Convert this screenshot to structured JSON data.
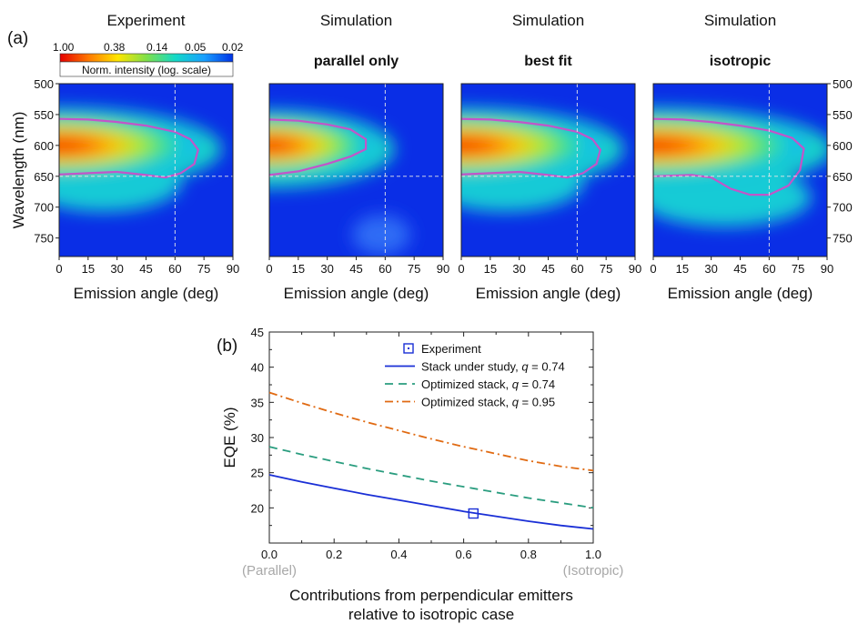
{
  "figure": {
    "panel_a_label": "(a)",
    "panel_b_label": "(b)"
  },
  "colorbar": {
    "ticks": [
      "1.00",
      "0.38",
      "0.14",
      "0.05",
      "0.02"
    ],
    "label": "Norm. intensity (log. scale)",
    "colors": [
      "#e60000",
      "#ff7a00",
      "#ffe600",
      "#7fe04a",
      "#14d9c7",
      "#1aa0ff",
      "#0033e6"
    ]
  },
  "chart_data": [
    {
      "type": "heatmap",
      "title": "Experiment",
      "subtitle": "",
      "xlabel": "Emission angle (deg)",
      "ylabel": "Wavelength (nm)",
      "xlim": [
        0,
        90
      ],
      "ylim": [
        500,
        780
      ],
      "xticks": [
        "0",
        "15",
        "30",
        "45",
        "60",
        "75",
        "90"
      ],
      "yticks": [
        "500",
        "550",
        "600",
        "650",
        "700",
        "750"
      ],
      "guide_lines": {
        "x": 60,
        "y": 650
      },
      "contour": [
        [
          0,
          557
        ],
        [
          15,
          558
        ],
        [
          30,
          562
        ],
        [
          45,
          568
        ],
        [
          60,
          578
        ],
        [
          68,
          590
        ],
        [
          72,
          607
        ],
        [
          70,
          630
        ],
        [
          63,
          645
        ],
        [
          55,
          652
        ],
        [
          45,
          648
        ],
        [
          30,
          643
        ],
        [
          15,
          645
        ],
        [
          0,
          647
        ]
      ],
      "peak": {
        "x": 0,
        "y": 600,
        "wavelength_halfwidth": 50,
        "angle_extent": 78,
        "secondary_lobe": 38
      }
    },
    {
      "type": "heatmap",
      "title": "Simulation",
      "subtitle": "parallel only",
      "xlabel": "Emission angle (deg)",
      "ylabel": "",
      "xlim": [
        0,
        90
      ],
      "ylim": [
        500,
        780
      ],
      "xticks": [
        "0",
        "15",
        "30",
        "45",
        "60",
        "75",
        "90"
      ],
      "yticks": [],
      "guide_lines": {
        "x": 60,
        "y": 650
      },
      "contour": [
        [
          0,
          558
        ],
        [
          15,
          560
        ],
        [
          30,
          566
        ],
        [
          42,
          574
        ],
        [
          50,
          590
        ],
        [
          50,
          606
        ],
        [
          42,
          618
        ],
        [
          30,
          630
        ],
        [
          15,
          642
        ],
        [
          0,
          648
        ]
      ],
      "peak": {
        "x": 0,
        "y": 600,
        "wavelength_halfwidth": 47,
        "angle_extent": 60,
        "secondary_lobe": 0
      }
    },
    {
      "type": "heatmap",
      "title": "Simulation",
      "subtitle": "best fit",
      "xlabel": "Emission angle (deg)",
      "ylabel": "",
      "xlim": [
        0,
        90
      ],
      "ylim": [
        500,
        780
      ],
      "xticks": [
        "0",
        "15",
        "30",
        "45",
        "60",
        "75",
        "90"
      ],
      "yticks": [],
      "guide_lines": {
        "x": 60,
        "y": 650
      },
      "contour": [
        [
          0,
          557
        ],
        [
          15,
          558
        ],
        [
          30,
          562
        ],
        [
          45,
          568
        ],
        [
          60,
          578
        ],
        [
          68,
          590
        ],
        [
          72,
          607
        ],
        [
          70,
          630
        ],
        [
          63,
          645
        ],
        [
          55,
          652
        ],
        [
          45,
          648
        ],
        [
          30,
          643
        ],
        [
          15,
          645
        ],
        [
          0,
          647
        ]
      ],
      "peak": {
        "x": 0,
        "y": 600,
        "wavelength_halfwidth": 50,
        "angle_extent": 78,
        "secondary_lobe": 38
      }
    },
    {
      "type": "heatmap",
      "title": "Simulation",
      "subtitle": "isotropic",
      "xlabel": "Emission angle (deg)",
      "ylabel": "",
      "xlim": [
        0,
        90
      ],
      "ylim": [
        500,
        780
      ],
      "xticks": [
        "0",
        "15",
        "30",
        "45",
        "60",
        "75",
        "90"
      ],
      "yticks": [
        "500",
        "550",
        "600",
        "650",
        "700",
        "750"
      ],
      "guide_lines": {
        "x": 60,
        "y": 650
      },
      "contour": [
        [
          0,
          557
        ],
        [
          15,
          558
        ],
        [
          30,
          562
        ],
        [
          45,
          568
        ],
        [
          60,
          576
        ],
        [
          72,
          588
        ],
        [
          78,
          605
        ],
        [
          76,
          640
        ],
        [
          70,
          665
        ],
        [
          60,
          680
        ],
        [
          50,
          680
        ],
        [
          40,
          670
        ],
        [
          30,
          652
        ],
        [
          20,
          648
        ],
        [
          0,
          650
        ]
      ],
      "peak": {
        "x": 0,
        "y": 600,
        "wavelength_halfwidth": 50,
        "angle_extent": 86,
        "secondary_lobe": 62
      }
    },
    {
      "type": "line",
      "title": "",
      "xlabel": "Contributions from perpendicular emitters\nrelative to isotropic case",
      "xlabel_lines": [
        "Contributions from perpendicular emitters",
        "relative to isotropic case"
      ],
      "ylabel": "EQE (%)",
      "xlim": [
        0,
        1
      ],
      "ylim": [
        15,
        45
      ],
      "xticks": [
        "0.0",
        "0.2",
        "0.4",
        "0.6",
        "0.8",
        "1.0"
      ],
      "yticks": [
        "20",
        "25",
        "30",
        "35",
        "40",
        "45"
      ],
      "x_end_labels": [
        "(Parallel)",
        "(Isotropic)"
      ],
      "legend_position": "top-right",
      "series": [
        {
          "name": "Experiment",
          "style": "marker-square",
          "color": "#1a2fd6",
          "x": [
            0.63
          ],
          "values": [
            19.2
          ]
        },
        {
          "name": "Stack under study, q = 0.74",
          "legend_parts": [
            "Stack under study, ",
            "q",
            " = 0.74"
          ],
          "style": "solid",
          "color": "#1a2fd6",
          "x": [
            0,
            0.1,
            0.2,
            0.3,
            0.4,
            0.5,
            0.6,
            0.7,
            0.8,
            0.9,
            1.0
          ],
          "values": [
            24.7,
            23.7,
            22.8,
            21.9,
            21.1,
            20.3,
            19.5,
            18.8,
            18.1,
            17.5,
            17.0
          ]
        },
        {
          "name": "Optimized stack, q = 0.74",
          "legend_parts": [
            "Optimized stack, ",
            "q",
            " = 0.74"
          ],
          "style": "dashed",
          "color": "#2a9d7f",
          "x": [
            0,
            0.1,
            0.2,
            0.3,
            0.4,
            0.5,
            0.6,
            0.7,
            0.8,
            0.9,
            1.0
          ],
          "values": [
            28.7,
            27.6,
            26.6,
            25.6,
            24.7,
            23.8,
            23.0,
            22.2,
            21.4,
            20.7,
            20.0
          ]
        },
        {
          "name": "Optimized stack, q = 0.95",
          "legend_parts": [
            "Optimized stack, ",
            "q",
            " = 0.95"
          ],
          "style": "dashdot",
          "color": "#e06a12",
          "x": [
            0,
            0.1,
            0.2,
            0.3,
            0.4,
            0.5,
            0.6,
            0.7,
            0.8,
            0.9,
            1.0
          ],
          "values": [
            36.4,
            34.9,
            33.5,
            32.2,
            31.0,
            29.8,
            28.7,
            27.7,
            26.7,
            25.9,
            25.3
          ]
        }
      ]
    }
  ]
}
